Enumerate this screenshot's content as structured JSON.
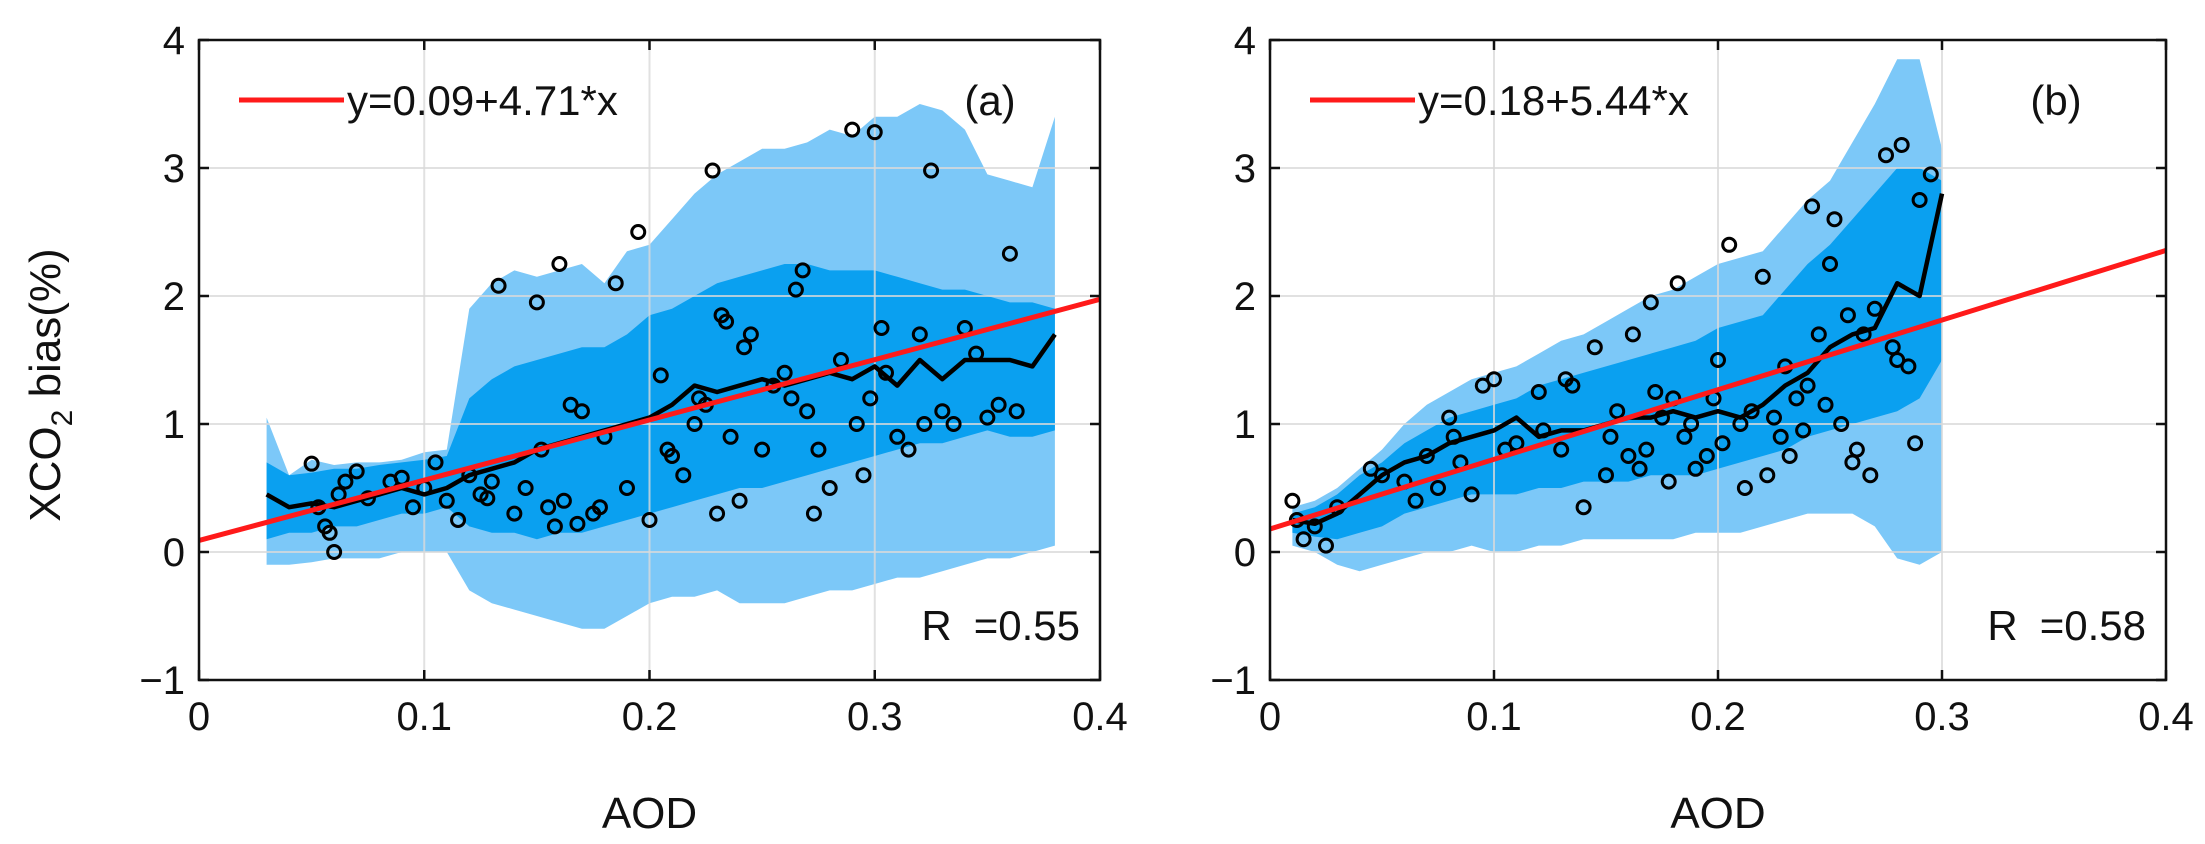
{
  "ylabel_main": "XCO",
  "ylabel_sub": "2",
  "ylabel_tail": " bias(%)",
  "colors": {
    "outer_band": "#7cc8f8",
    "inner_band": "#0aa0f0",
    "fit_line": "#ff1a1a",
    "mean_line": "#000000",
    "axes": "#111111",
    "grid": "#d9d9d9"
  },
  "chart_data": [
    {
      "type": "scatter",
      "panel": "(a)",
      "xlabel": "AOD",
      "xlim": [
        0,
        0.4
      ],
      "ylim": [
        -1,
        4
      ],
      "xticks": [
        0,
        0.1,
        0.2,
        0.3,
        0.4
      ],
      "yticks": [
        -1,
        0,
        1,
        2,
        3,
        4
      ],
      "xtick_labels": [
        "0",
        "0.1",
        "0.2",
        "0.3",
        "0.4"
      ],
      "ytick_labels": [
        "−1",
        "0",
        "1",
        "2",
        "3",
        "4"
      ],
      "grid": true,
      "fit": {
        "label": "y=0.09+4.71*x",
        "intercept": 0.09,
        "slope": 4.71
      },
      "r_prefix": "R",
      "r_value": "=0.55",
      "band_x": [
        0.03,
        0.04,
        0.05,
        0.06,
        0.07,
        0.08,
        0.09,
        0.1,
        0.11,
        0.12,
        0.13,
        0.14,
        0.15,
        0.16,
        0.17,
        0.18,
        0.19,
        0.2,
        0.21,
        0.22,
        0.23,
        0.24,
        0.25,
        0.26,
        0.27,
        0.28,
        0.29,
        0.3,
        0.31,
        0.32,
        0.33,
        0.34,
        0.35,
        0.36,
        0.37,
        0.38
      ],
      "outer_upper": [
        1.05,
        0.6,
        0.72,
        0.68,
        0.7,
        0.7,
        0.72,
        0.78,
        0.8,
        1.9,
        2.1,
        2.2,
        2.15,
        2.2,
        2.25,
        2.1,
        2.35,
        2.4,
        2.6,
        2.8,
        2.95,
        3.05,
        3.15,
        3.15,
        3.2,
        3.3,
        3.25,
        3.4,
        3.4,
        3.5,
        3.45,
        3.3,
        2.95,
        2.9,
        2.85,
        3.4
      ],
      "outer_lower": [
        -0.1,
        -0.1,
        -0.08,
        -0.05,
        -0.05,
        -0.05,
        0.0,
        0.0,
        0.0,
        -0.3,
        -0.4,
        -0.45,
        -0.5,
        -0.55,
        -0.6,
        -0.6,
        -0.5,
        -0.4,
        -0.35,
        -0.35,
        -0.3,
        -0.4,
        -0.4,
        -0.4,
        -0.35,
        -0.3,
        -0.3,
        -0.25,
        -0.2,
        -0.2,
        -0.15,
        -0.1,
        -0.05,
        -0.05,
        0.0,
        0.05
      ],
      "inner_upper": [
        0.7,
        0.6,
        0.62,
        0.65,
        0.65,
        0.68,
        0.7,
        0.72,
        0.75,
        1.2,
        1.35,
        1.45,
        1.5,
        1.55,
        1.6,
        1.6,
        1.7,
        1.85,
        1.9,
        2.0,
        2.1,
        2.15,
        2.2,
        2.25,
        2.25,
        2.2,
        2.2,
        2.2,
        2.15,
        2.1,
        2.05,
        2.05,
        2.0,
        1.95,
        1.95,
        1.9
      ],
      "inner_lower": [
        0.1,
        0.15,
        0.15,
        0.2,
        0.2,
        0.25,
        0.3,
        0.3,
        0.35,
        0.2,
        0.15,
        0.15,
        0.1,
        0.15,
        0.15,
        0.2,
        0.25,
        0.3,
        0.35,
        0.4,
        0.45,
        0.5,
        0.5,
        0.55,
        0.6,
        0.65,
        0.7,
        0.75,
        0.8,
        0.85,
        0.85,
        0.9,
        0.95,
        0.9,
        0.9,
        0.95
      ],
      "mean_x": [
        0.03,
        0.04,
        0.05,
        0.06,
        0.07,
        0.08,
        0.09,
        0.1,
        0.11,
        0.12,
        0.13,
        0.14,
        0.15,
        0.16,
        0.17,
        0.18,
        0.19,
        0.2,
        0.21,
        0.22,
        0.23,
        0.24,
        0.25,
        0.26,
        0.27,
        0.28,
        0.29,
        0.3,
        0.31,
        0.32,
        0.33,
        0.34,
        0.35,
        0.36,
        0.37,
        0.38
      ],
      "mean_y": [
        0.45,
        0.35,
        0.38,
        0.35,
        0.4,
        0.45,
        0.5,
        0.45,
        0.5,
        0.6,
        0.65,
        0.7,
        0.8,
        0.85,
        0.9,
        0.95,
        1.0,
        1.05,
        1.15,
        1.3,
        1.25,
        1.3,
        1.35,
        1.3,
        1.35,
        1.4,
        1.35,
        1.45,
        1.3,
        1.5,
        1.35,
        1.5,
        1.5,
        1.5,
        1.45,
        1.7
      ],
      "points": [
        [
          0.05,
          0.69
        ],
        [
          0.053,
          0.35
        ],
        [
          0.056,
          0.2
        ],
        [
          0.058,
          0.15
        ],
        [
          0.06,
          0.0
        ],
        [
          0.062,
          0.45
        ],
        [
          0.065,
          0.55
        ],
        [
          0.07,
          0.63
        ],
        [
          0.075,
          0.42
        ],
        [
          0.085,
          0.55
        ],
        [
          0.09,
          0.58
        ],
        [
          0.095,
          0.35
        ],
        [
          0.1,
          0.5
        ],
        [
          0.105,
          0.7
        ],
        [
          0.11,
          0.4
        ],
        [
          0.115,
          0.25
        ],
        [
          0.12,
          0.6
        ],
        [
          0.125,
          0.45
        ],
        [
          0.128,
          0.42
        ],
        [
          0.13,
          0.55
        ],
        [
          0.133,
          2.08
        ],
        [
          0.14,
          0.3
        ],
        [
          0.145,
          0.5
        ],
        [
          0.15,
          1.95
        ],
        [
          0.152,
          0.8
        ],
        [
          0.155,
          0.35
        ],
        [
          0.158,
          0.2
        ],
        [
          0.16,
          2.25
        ],
        [
          0.162,
          0.4
        ],
        [
          0.165,
          1.15
        ],
        [
          0.168,
          0.22
        ],
        [
          0.17,
          1.1
        ],
        [
          0.175,
          0.3
        ],
        [
          0.178,
          0.35
        ],
        [
          0.18,
          0.9
        ],
        [
          0.185,
          2.1
        ],
        [
          0.19,
          0.5
        ],
        [
          0.195,
          2.5
        ],
        [
          0.2,
          0.25
        ],
        [
          0.205,
          1.38
        ],
        [
          0.208,
          0.8
        ],
        [
          0.21,
          0.75
        ],
        [
          0.215,
          0.6
        ],
        [
          0.22,
          1.0
        ],
        [
          0.222,
          1.2
        ],
        [
          0.225,
          1.15
        ],
        [
          0.228,
          2.98
        ],
        [
          0.23,
          0.3
        ],
        [
          0.232,
          1.85
        ],
        [
          0.234,
          1.8
        ],
        [
          0.236,
          0.9
        ],
        [
          0.24,
          0.4
        ],
        [
          0.242,
          1.6
        ],
        [
          0.245,
          1.7
        ],
        [
          0.25,
          0.8
        ],
        [
          0.255,
          1.3
        ],
        [
          0.26,
          1.4
        ],
        [
          0.263,
          1.2
        ],
        [
          0.265,
          2.05
        ],
        [
          0.268,
          2.2
        ],
        [
          0.27,
          1.1
        ],
        [
          0.273,
          0.3
        ],
        [
          0.275,
          0.8
        ],
        [
          0.28,
          0.5
        ],
        [
          0.285,
          1.5
        ],
        [
          0.29,
          3.3
        ],
        [
          0.292,
          1.0
        ],
        [
          0.295,
          0.6
        ],
        [
          0.298,
          1.2
        ],
        [
          0.3,
          3.28
        ],
        [
          0.303,
          1.75
        ],
        [
          0.305,
          1.4
        ],
        [
          0.31,
          0.9
        ],
        [
          0.315,
          0.8
        ],
        [
          0.32,
          1.7
        ],
        [
          0.322,
          1.0
        ],
        [
          0.325,
          2.98
        ],
        [
          0.33,
          1.1
        ],
        [
          0.335,
          1.0
        ],
        [
          0.34,
          1.75
        ],
        [
          0.345,
          1.55
        ],
        [
          0.35,
          1.05
        ],
        [
          0.355,
          1.15
        ],
        [
          0.36,
          2.33
        ],
        [
          0.363,
          1.1
        ]
      ]
    },
    {
      "type": "scatter",
      "panel": "(b)",
      "xlabel": "AOD",
      "xlim": [
        0,
        0.4
      ],
      "ylim": [
        -1,
        4
      ],
      "xticks": [
        0,
        0.1,
        0.2,
        0.3,
        0.4
      ],
      "yticks": [
        -1,
        0,
        1,
        2,
        3,
        4
      ],
      "xtick_labels": [
        "0",
        "0.1",
        "0.2",
        "0.3",
        "0.4"
      ],
      "ytick_labels": [
        "−1",
        "0",
        "1",
        "2",
        "3",
        "4"
      ],
      "grid": true,
      "fit": {
        "label": "y=0.18+5.44*x",
        "intercept": 0.18,
        "slope": 5.44
      },
      "r_prefix": "R",
      "r_value": "=0.58",
      "band_x": [
        0.01,
        0.02,
        0.03,
        0.04,
        0.05,
        0.06,
        0.07,
        0.08,
        0.09,
        0.1,
        0.11,
        0.12,
        0.13,
        0.14,
        0.15,
        0.16,
        0.17,
        0.18,
        0.19,
        0.2,
        0.21,
        0.22,
        0.23,
        0.24,
        0.25,
        0.26,
        0.27,
        0.28,
        0.29,
        0.3
      ],
      "outer_upper": [
        0.35,
        0.4,
        0.5,
        0.65,
        0.8,
        1.0,
        1.15,
        1.25,
        1.35,
        1.4,
        1.45,
        1.55,
        1.65,
        1.7,
        1.8,
        1.9,
        2.0,
        2.05,
        2.15,
        2.25,
        2.3,
        2.35,
        2.55,
        2.75,
        2.9,
        3.2,
        3.5,
        3.85,
        3.85,
        3.15
      ],
      "outer_lower": [
        0.05,
        0.0,
        -0.1,
        -0.15,
        -0.1,
        -0.05,
        0.0,
        0.0,
        0.05,
        0.0,
        0.0,
        0.05,
        0.05,
        0.1,
        0.1,
        0.1,
        0.1,
        0.1,
        0.15,
        0.15,
        0.15,
        0.2,
        0.25,
        0.3,
        0.3,
        0.3,
        0.2,
        -0.05,
        -0.1,
        0.0
      ],
      "inner_upper": [
        0.3,
        0.35,
        0.45,
        0.6,
        0.7,
        0.85,
        0.95,
        1.05,
        1.1,
        1.15,
        1.2,
        1.3,
        1.35,
        1.4,
        1.45,
        1.5,
        1.55,
        1.6,
        1.65,
        1.75,
        1.8,
        1.85,
        2.05,
        2.25,
        2.4,
        2.6,
        2.8,
        3.0,
        3.0,
        2.9
      ],
      "inner_lower": [
        0.15,
        0.12,
        0.1,
        0.15,
        0.2,
        0.3,
        0.35,
        0.4,
        0.45,
        0.45,
        0.45,
        0.5,
        0.5,
        0.55,
        0.55,
        0.55,
        0.6,
        0.6,
        0.6,
        0.65,
        0.7,
        0.75,
        0.8,
        0.9,
        0.95,
        1.0,
        1.05,
        1.1,
        1.2,
        1.5
      ],
      "mean_x": [
        0.01,
        0.02,
        0.03,
        0.04,
        0.05,
        0.06,
        0.07,
        0.08,
        0.09,
        0.1,
        0.11,
        0.12,
        0.13,
        0.14,
        0.15,
        0.16,
        0.17,
        0.18,
        0.19,
        0.2,
        0.21,
        0.22,
        0.23,
        0.24,
        0.25,
        0.26,
        0.27,
        0.28,
        0.29,
        0.3
      ],
      "mean_y": [
        0.25,
        0.22,
        0.3,
        0.45,
        0.6,
        0.7,
        0.75,
        0.85,
        0.9,
        0.95,
        1.05,
        0.9,
        0.95,
        0.95,
        1.0,
        1.05,
        1.05,
        1.1,
        1.05,
        1.1,
        1.05,
        1.15,
        1.3,
        1.4,
        1.6,
        1.7,
        1.75,
        2.1,
        2.0,
        2.8
      ],
      "points": [
        [
          0.01,
          0.4
        ],
        [
          0.012,
          0.25
        ],
        [
          0.015,
          0.1
        ],
        [
          0.02,
          0.2
        ],
        [
          0.025,
          0.05
        ],
        [
          0.03,
          0.35
        ],
        [
          0.045,
          0.65
        ],
        [
          0.05,
          0.6
        ],
        [
          0.06,
          0.55
        ],
        [
          0.065,
          0.4
        ],
        [
          0.07,
          0.75
        ],
        [
          0.075,
          0.5
        ],
        [
          0.08,
          1.05
        ],
        [
          0.082,
          0.9
        ],
        [
          0.085,
          0.7
        ],
        [
          0.09,
          0.45
        ],
        [
          0.095,
          1.3
        ],
        [
          0.1,
          1.35
        ],
        [
          0.105,
          0.8
        ],
        [
          0.11,
          0.85
        ],
        [
          0.12,
          1.25
        ],
        [
          0.122,
          0.95
        ],
        [
          0.13,
          0.8
        ],
        [
          0.132,
          1.35
        ],
        [
          0.135,
          1.3
        ],
        [
          0.14,
          0.35
        ],
        [
          0.145,
          1.6
        ],
        [
          0.15,
          0.6
        ],
        [
          0.152,
          0.9
        ],
        [
          0.155,
          1.1
        ],
        [
          0.16,
          0.75
        ],
        [
          0.162,
          1.7
        ],
        [
          0.165,
          0.65
        ],
        [
          0.168,
          0.8
        ],
        [
          0.17,
          1.95
        ],
        [
          0.172,
          1.25
        ],
        [
          0.175,
          1.05
        ],
        [
          0.178,
          0.55
        ],
        [
          0.18,
          1.2
        ],
        [
          0.182,
          2.1
        ],
        [
          0.185,
          0.9
        ],
        [
          0.188,
          1.0
        ],
        [
          0.19,
          0.65
        ],
        [
          0.195,
          0.75
        ],
        [
          0.198,
          1.2
        ],
        [
          0.2,
          1.5
        ],
        [
          0.202,
          0.85
        ],
        [
          0.205,
          2.4
        ],
        [
          0.21,
          1.0
        ],
        [
          0.212,
          0.5
        ],
        [
          0.215,
          1.1
        ],
        [
          0.22,
          2.15
        ],
        [
          0.222,
          0.6
        ],
        [
          0.225,
          1.05
        ],
        [
          0.228,
          0.9
        ],
        [
          0.23,
          1.45
        ],
        [
          0.232,
          0.75
        ],
        [
          0.235,
          1.2
        ],
        [
          0.238,
          0.95
        ],
        [
          0.24,
          1.3
        ],
        [
          0.242,
          2.7
        ],
        [
          0.245,
          1.7
        ],
        [
          0.248,
          1.15
        ],
        [
          0.25,
          2.25
        ],
        [
          0.252,
          2.6
        ],
        [
          0.255,
          1.0
        ],
        [
          0.258,
          1.85
        ],
        [
          0.26,
          0.7
        ],
        [
          0.262,
          0.8
        ],
        [
          0.265,
          1.7
        ],
        [
          0.268,
          0.6
        ],
        [
          0.27,
          1.9
        ],
        [
          0.275,
          3.1
        ],
        [
          0.278,
          1.6
        ],
        [
          0.28,
          1.5
        ],
        [
          0.282,
          3.18
        ],
        [
          0.285,
          1.45
        ],
        [
          0.288,
          0.85
        ],
        [
          0.29,
          2.75
        ],
        [
          0.295,
          2.95
        ]
      ]
    }
  ]
}
